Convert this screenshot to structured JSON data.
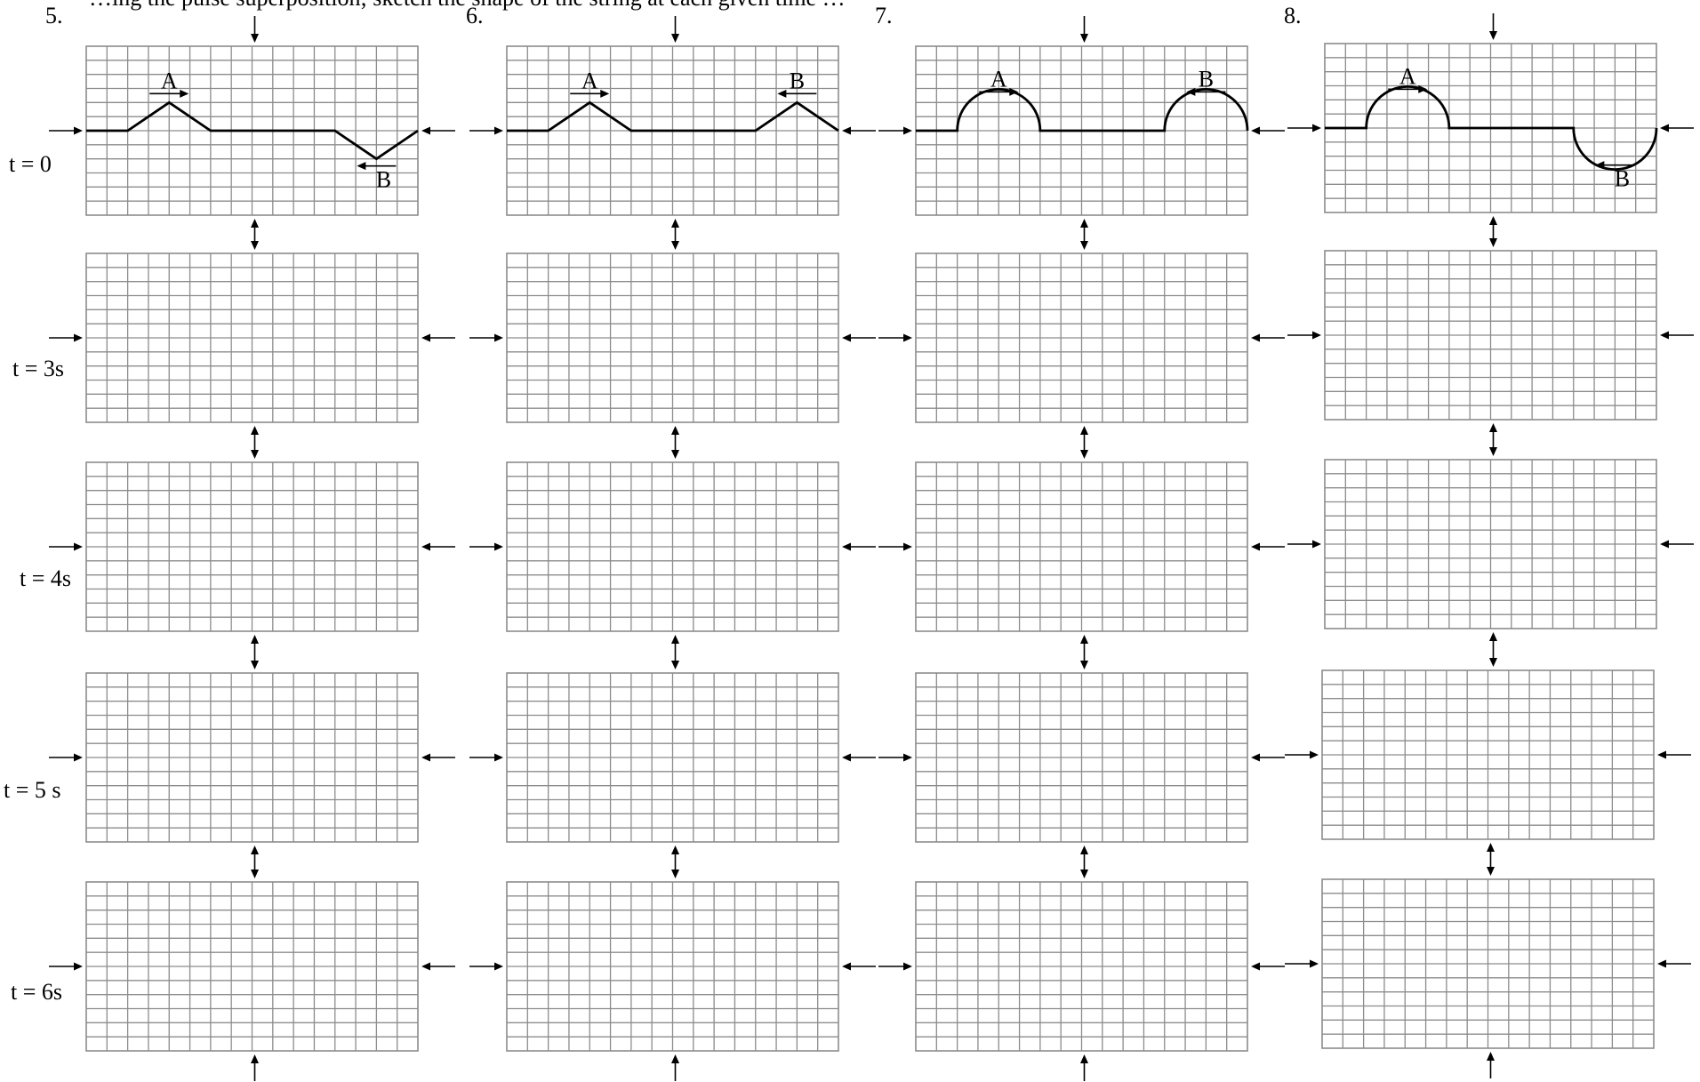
{
  "header_fragment": "…ing the pulse superposition; sketch the shape of the string at each given time …",
  "problems": [
    {
      "number": "5.",
      "pulses": [
        {
          "label": "A",
          "shape": "triangle",
          "direction": "up",
          "moving": "right"
        },
        {
          "label": "B",
          "shape": "triangle",
          "direction": "down",
          "moving": "left"
        }
      ]
    },
    {
      "number": "6.",
      "pulses": [
        {
          "label": "A",
          "shape": "triangle",
          "direction": "up",
          "moving": "right"
        },
        {
          "label": "B",
          "shape": "triangle",
          "direction": "up",
          "moving": "left"
        }
      ]
    },
    {
      "number": "7.",
      "pulses": [
        {
          "label": "A",
          "shape": "semicircle",
          "direction": "up",
          "moving": "right"
        },
        {
          "label": "B",
          "shape": "semicircle",
          "direction": "up",
          "moving": "left"
        }
      ]
    },
    {
      "number": "8.",
      "pulses": [
        {
          "label": "A",
          "shape": "semicircle",
          "direction": "up",
          "moving": "right"
        },
        {
          "label": "B",
          "shape": "semicircle",
          "direction": "down",
          "moving": "left"
        }
      ]
    }
  ],
  "time_labels": [
    "t = 0",
    "t = 3s",
    "t = 4s",
    "t = 5 s",
    "t = 6s"
  ],
  "grid": {
    "columns": 16,
    "rows": 12,
    "line_color": "#8c8c8c"
  },
  "pulse_color": "#000000"
}
